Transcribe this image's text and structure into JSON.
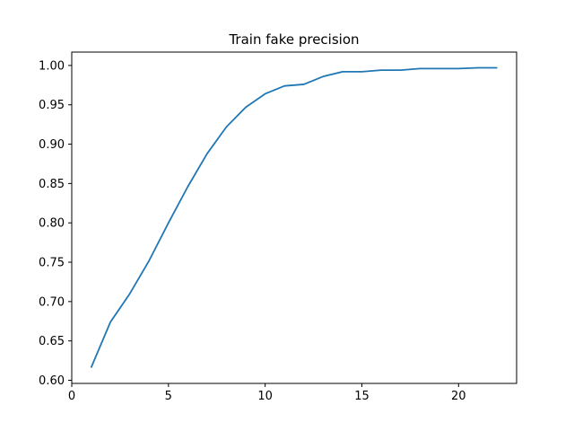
{
  "chart_data": {
    "type": "line",
    "title": "Train fake precision",
    "xlabel": "",
    "ylabel": "",
    "xlim": [
      0,
      23
    ],
    "ylim": [
      0.596,
      1.017
    ],
    "x_ticks": [
      0,
      5,
      10,
      15,
      20
    ],
    "y_ticks": [
      0.6,
      0.65,
      0.7,
      0.75,
      0.8,
      0.85,
      0.9,
      0.95,
      1.0
    ],
    "grid": false,
    "series": [
      {
        "color": "#1f77b4",
        "x": [
          1,
          2,
          3,
          4,
          5,
          6,
          7,
          8,
          9,
          10,
          11,
          12,
          13,
          14,
          15,
          16,
          17,
          18,
          19,
          20,
          21,
          22
        ],
        "y": [
          0.616,
          0.674,
          0.71,
          0.752,
          0.8,
          0.846,
          0.888,
          0.922,
          0.947,
          0.964,
          0.974,
          0.976,
          0.986,
          0.992,
          0.992,
          0.994,
          0.994,
          0.996,
          0.996,
          0.996,
          0.997,
          0.997
        ]
      }
    ]
  }
}
